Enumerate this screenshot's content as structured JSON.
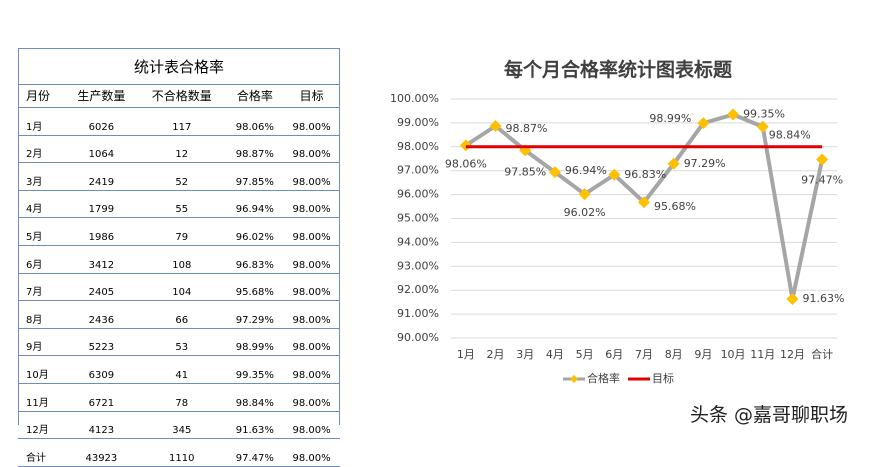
{
  "table": {
    "title": "统计表合格率",
    "header": [
      "月份",
      "生产数量",
      "不合格数量",
      "合格率",
      "目标"
    ],
    "rows": [
      [
        "1月",
        "6026",
        "117",
        "98.06%",
        "98.00%"
      ],
      [
        "2月",
        "1064",
        "12",
        "98.87%",
        "98.00%"
      ],
      [
        "3月",
        "2419",
        "52",
        "97.85%",
        "98.00%"
      ],
      [
        "4月",
        "1799",
        "55",
        "96.94%",
        "98.00%"
      ],
      [
        "5月",
        "1986",
        "79",
        "96.02%",
        "98.00%"
      ],
      [
        "6月",
        "3412",
        "108",
        "96.83%",
        "98.00%"
      ],
      [
        "7月",
        "2405",
        "104",
        "95.68%",
        "98.00%"
      ],
      [
        "8月",
        "2436",
        "66",
        "97.29%",
        "98.00%"
      ],
      [
        "9月",
        "5223",
        "53",
        "98.99%",
        "98.00%"
      ],
      [
        "10月",
        "6309",
        "41",
        "99.35%",
        "98.00%"
      ],
      [
        "11月",
        "6721",
        "78",
        "98.84%",
        "98.00%"
      ],
      [
        "12月",
        "4123",
        "345",
        "91.63%",
        "98.00%"
      ],
      [
        "合计",
        "43923",
        "1110",
        "97.47%",
        "98.00%"
      ]
    ]
  },
  "chart_data": {
    "type": "line",
    "title": "每个月合格率统计图表标题",
    "categories": [
      "1月",
      "2月",
      "3月",
      "4月",
      "5月",
      "6月",
      "7月",
      "8月",
      "9月",
      "10月",
      "11月",
      "12月",
      "合计"
    ],
    "series": [
      {
        "name": "合格率",
        "color": "#a6a6a6",
        "marker_color": "#ffc000",
        "values": [
          98.06,
          98.87,
          97.85,
          96.94,
          96.02,
          96.83,
          95.68,
          97.29,
          98.99,
          99.35,
          98.84,
          91.63,
          97.47
        ],
        "value_labels": [
          "98.06%",
          "98.87%",
          "97.85%",
          "96.94%",
          "96.02%",
          "96.83%",
          "95.68%",
          "97.29%",
          "98.99%",
          "99.35%",
          "98.84%",
          "91.63%",
          "97.47%"
        ]
      },
      {
        "name": "目标",
        "color": "#e00000",
        "values": [
          98,
          98,
          98,
          98,
          98,
          98,
          98,
          98,
          98,
          98,
          98,
          98,
          98
        ]
      }
    ],
    "ylim": [
      90,
      100
    ],
    "yticks": [
      {
        "value": 90,
        "label": "90.00%"
      },
      {
        "value": 91,
        "label": "91.00%"
      },
      {
        "value": 92,
        "label": "92.00%"
      },
      {
        "value": 93,
        "label": "93.00%"
      },
      {
        "value": 94,
        "label": "94.00%"
      },
      {
        "value": 95,
        "label": "95.00%"
      },
      {
        "value": 96,
        "label": "96.00%"
      },
      {
        "value": 97,
        "label": "97.00%"
      },
      {
        "value": 98,
        "label": "98.00%"
      },
      {
        "value": 99,
        "label": "99.00%"
      },
      {
        "value": 100,
        "label": "100.00%"
      }
    ],
    "grid": true,
    "legend": "bottom"
  },
  "watermark": "头条 @嘉哥聊职场"
}
